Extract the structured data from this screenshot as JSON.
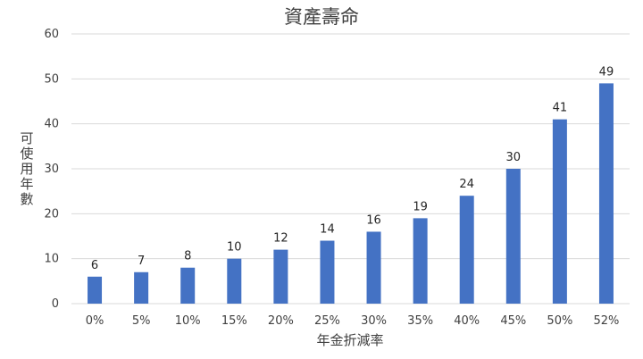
{
  "chart_data": {
    "type": "bar",
    "title": "資產壽命",
    "xlabel": "年金折減率",
    "ylabel": "可使用年數",
    "categories": [
      "0%",
      "5%",
      "10%",
      "15%",
      "20%",
      "25%",
      "30%",
      "35%",
      "40%",
      "45%",
      "50%",
      "52%"
    ],
    "series": [
      {
        "values": [
          6,
          7,
          8,
          10,
          12,
          14,
          16,
          19,
          24,
          30,
          41,
          49
        ],
        "color": "#4472c4"
      }
    ],
    "ylim": [
      0,
      60
    ],
    "yticks": [
      0,
      10,
      20,
      30,
      40,
      50,
      60
    ],
    "grid": true,
    "legend": "none",
    "data_labels": true
  }
}
